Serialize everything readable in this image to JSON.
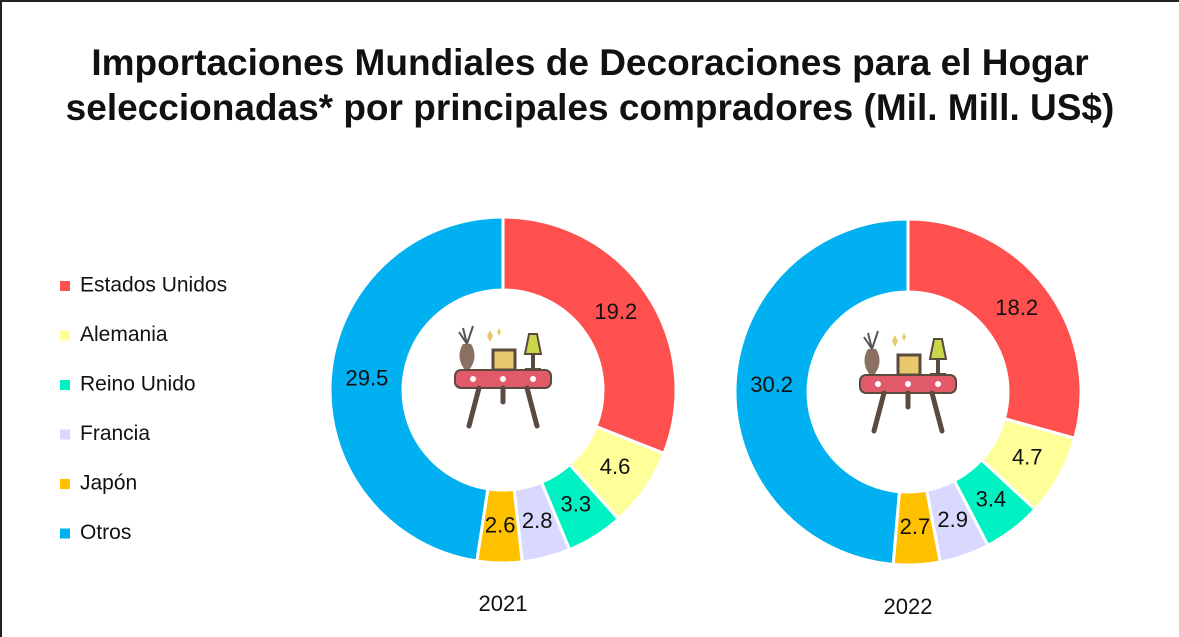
{
  "chart_data": {
    "type": "pie",
    "title": "Importaciones Mundiales de Decoraciones para el Hogar seleccionadas* por principales compradores (Mil. Mill. US$)",
    "categories": [
      "Estados Unidos",
      "Alemania",
      "Reino Unido",
      "Francia",
      "Japón",
      "Otros"
    ],
    "colors": [
      "#ff5050",
      "#ffff99",
      "#00f2c3",
      "#d9d9ff",
      "#ffc000",
      "#00b0f0"
    ],
    "series": [
      {
        "name": "2021",
        "values": [
          19.2,
          4.6,
          3.3,
          2.8,
          2.6,
          29.5
        ]
      },
      {
        "name": "2022",
        "values": [
          18.2,
          4.7,
          3.4,
          2.9,
          2.7,
          30.2
        ]
      }
    ]
  }
}
